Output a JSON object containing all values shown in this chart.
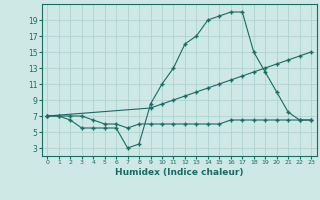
{
  "xlabel": "Humidex (Indice chaleur)",
  "bg_color": "#cde8e5",
  "grid_color": "#aaceca",
  "line_color": "#1a6b62",
  "xlim": [
    -0.5,
    23.5
  ],
  "ylim": [
    2,
    21
  ],
  "xticks": [
    0,
    1,
    2,
    3,
    4,
    5,
    6,
    7,
    8,
    9,
    10,
    11,
    12,
    13,
    14,
    15,
    16,
    17,
    18,
    19,
    20,
    21,
    22,
    23
  ],
  "yticks": [
    3,
    5,
    7,
    9,
    11,
    13,
    15,
    17,
    19
  ],
  "curve1_x": [
    0,
    1,
    2,
    3,
    4,
    5,
    6,
    7,
    8,
    9,
    10,
    11,
    12,
    13,
    14,
    15,
    16,
    17,
    18,
    19,
    20,
    21,
    22,
    23
  ],
  "curve1_y": [
    7,
    7,
    6.5,
    5.5,
    5.5,
    5.5,
    5.5,
    3,
    3.5,
    8.5,
    11,
    13,
    16,
    17,
    19,
    19.5,
    20,
    20,
    15,
    12.5,
    10,
    7.5,
    6.5,
    6.5
  ],
  "curve2_x": [
    0,
    9,
    10,
    11,
    12,
    13,
    14,
    15,
    16,
    17,
    18,
    19,
    20,
    21,
    22,
    23
  ],
  "curve2_y": [
    7,
    8,
    8.5,
    9,
    9.5,
    10,
    10.5,
    11,
    11.5,
    12,
    12.5,
    13,
    13.5,
    14,
    14.5,
    15
  ],
  "curve3_x": [
    0,
    1,
    2,
    3,
    4,
    5,
    6,
    7,
    8,
    9,
    10,
    11,
    12,
    13,
    14,
    15,
    16,
    17,
    18,
    19,
    20,
    21,
    22,
    23
  ],
  "curve3_y": [
    7,
    7,
    7,
    7,
    6.5,
    6,
    6,
    5.5,
    6,
    6,
    6,
    6,
    6,
    6,
    6,
    6,
    6.5,
    6.5,
    6.5,
    6.5,
    6.5,
    6.5,
    6.5,
    6.5
  ]
}
